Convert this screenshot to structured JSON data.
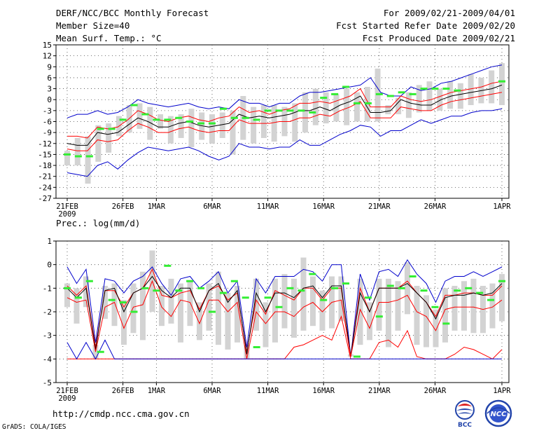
{
  "header": {
    "title": "DERF/NCC/BCC Monthly Forecast",
    "member_size": "Member Size=40",
    "variable": "Mean Surf. Temp.: °C",
    "period": "For 2009/02/21-2009/04/01",
    "fcst_started": "Fcst Started Refer Date 2009/02/20",
    "fcst_produced": "Fcst Produced Date 2009/02/21"
  },
  "footer": {
    "url": "http://cmdp.ncc.cma.gov.cn",
    "grads": "GrADS: COLA/IGES",
    "logo_bcc": "BCC",
    "logo_ncc": "NCC"
  },
  "colors": {
    "box": "#d3d3d3",
    "ensemble_mean": "#000000",
    "quartile": "#ff0000",
    "extreme": "#0000cc",
    "observed": "#33ee33",
    "grid": "#444444"
  },
  "chart_data": [
    {
      "type": "line",
      "title": "Mean Surf. Temp.: °C",
      "ylim": [
        -27,
        15
      ],
      "yticks": [
        -27,
        -24,
        -21,
        -18,
        -15,
        -12,
        -9,
        -6,
        -3,
        0,
        3,
        6,
        9,
        12,
        15
      ],
      "xlim": [
        1,
        40
      ],
      "xticks": [
        {
          "day": 1,
          "label": "21FEB",
          "sub": "2009"
        },
        {
          "day": 6,
          "label": "26FEB"
        },
        {
          "day": 9,
          "label": "1MAR"
        },
        {
          "day": 14,
          "label": "6MAR"
        },
        {
          "day": 19,
          "label": "11MAR"
        },
        {
          "day": 24,
          "label": "16MAR"
        },
        {
          "day": 29,
          "label": "21MAR"
        },
        {
          "day": 34,
          "label": "26MAR"
        },
        {
          "day": 40,
          "label": "1APR"
        }
      ],
      "series": [
        {
          "name": "max",
          "role": "extreme",
          "values": [
            -5,
            -4,
            -4,
            -3,
            -4,
            -3.5,
            -2,
            0,
            -1,
            -1.5,
            -2,
            -1.5,
            -1,
            -2,
            -2.5,
            -2,
            -2.5,
            0,
            -1,
            -1,
            -2,
            -1,
            -1,
            1,
            2,
            2,
            2.5,
            3,
            3.5,
            4,
            6,
            2,
            1,
            1,
            3.5,
            2.5,
            3,
            4.5,
            5,
            6,
            7,
            8,
            9,
            9.5
          ]
        },
        {
          "name": "q3",
          "role": "quartile",
          "values": [
            -10,
            -10,
            -10.5,
            -7.5,
            -8,
            -7.5,
            -5.5,
            -3,
            -4,
            -5.5,
            -6,
            -5,
            -4.5,
            -5.5,
            -6,
            -5,
            -4.5,
            -2,
            -3.5,
            -3,
            -4,
            -3,
            -2.5,
            -1,
            -1,
            -0.5,
            -1,
            0,
            1,
            3,
            -2,
            -2,
            -2,
            1,
            0,
            -0.5,
            0,
            1,
            2,
            2.5,
            3,
            3.5,
            4.5,
            5
          ]
        },
        {
          "name": "mean",
          "role": "mean",
          "values": [
            -12,
            -12.5,
            -12.5,
            -9,
            -9.5,
            -9,
            -7,
            -5,
            -6,
            -7.5,
            -7.5,
            -6.5,
            -6,
            -7,
            -7.5,
            -7,
            -6.5,
            -4,
            -5,
            -4.5,
            -5,
            -4.5,
            -4,
            -3,
            -3,
            -2,
            -3,
            -1.5,
            -0.5,
            1,
            -3.5,
            -3.5,
            -3,
            0,
            -1,
            -1.5,
            -1.5,
            0,
            1,
            1.5,
            2,
            2.5,
            3,
            4
          ]
        },
        {
          "name": "q1",
          "role": "quartile",
          "values": [
            -13.5,
            -14,
            -14,
            -11,
            -11.5,
            -11,
            -8.5,
            -6.5,
            -7.5,
            -9,
            -9,
            -8,
            -7.5,
            -8.5,
            -9,
            -8.5,
            -8.5,
            -5.5,
            -6.5,
            -6.5,
            -6.5,
            -6,
            -6,
            -5,
            -5,
            -4,
            -4.5,
            -3,
            -2,
            -0.5,
            -5,
            -5,
            -5,
            -2,
            -2.5,
            -3,
            -3,
            -1.5,
            -0.5,
            0,
            0.5,
            1,
            1.5,
            2
          ]
        },
        {
          "name": "min",
          "role": "extreme",
          "values": [
            -20,
            -20.5,
            -21,
            -18,
            -17,
            -19,
            -16.5,
            -14.5,
            -13,
            -13.5,
            -14,
            -13.5,
            -13,
            -14,
            -15.5,
            -16.5,
            -15.5,
            -12,
            -13,
            -13,
            -13.5,
            -13,
            -13,
            -11,
            -12.5,
            -12.5,
            -11,
            -9.5,
            -8.5,
            -7,
            -7.5,
            -10,
            -8.5,
            -8.5,
            -7,
            -5.5,
            -6.5,
            -5.5,
            -4.5,
            -4.5,
            -3.5,
            -3,
            -3,
            -2.5
          ]
        },
        {
          "name": "observed",
          "role": "observed",
          "values": [
            -15,
            -15.5,
            -15.5,
            -8,
            -8,
            -5.5,
            -1.5,
            -4,
            -5.5,
            -5.5,
            -5,
            -6,
            -6.5,
            -6.5,
            -2.5,
            -5,
            -5,
            -5.5,
            -3,
            -3,
            -3,
            -3,
            -3.5,
            0.5,
            1.5,
            3.5,
            -1,
            -1,
            1.5,
            1,
            2,
            1.5,
            3,
            3,
            3,
            2.5,
            5
          ]
        }
      ],
      "box_low": [
        -18,
        -18,
        -23,
        -17,
        -14.5,
        -10,
        -9,
        -8,
        -11,
        -8,
        -12,
        -10.5,
        -13,
        -11,
        -12,
        -10.5,
        -15,
        -11,
        -12,
        -10.5,
        -11.5,
        -10,
        -11.5,
        -9,
        -7,
        -6.5,
        -6,
        -7,
        -6,
        -6,
        -6,
        -4,
        -4,
        -5,
        -3.5,
        -3,
        -3,
        -2.5,
        -2.5,
        -1.5,
        -1,
        -1,
        -1.5
      ],
      "box_high": [
        -14,
        -10.5,
        -10,
        -7,
        -6.5,
        -4.5,
        -1.5,
        -1,
        -2,
        -4,
        -4.5,
        -4,
        -2.5,
        -3.5,
        -4,
        -3.5,
        -3,
        1,
        -2,
        -1.5,
        -1.5,
        -2,
        -1,
        2,
        3,
        2,
        1.5,
        3,
        2,
        3.5,
        8.5,
        -1.5,
        0.5,
        2,
        4,
        5,
        3,
        5,
        4.5,
        7,
        6,
        8,
        10,
        11
      ]
    },
    {
      "type": "line",
      "title": "Prec.: log(mm/d)",
      "ylim": [
        -5,
        1
      ],
      "yticks": [
        -5,
        -4,
        -3,
        -2,
        -1,
        0,
        1
      ],
      "xlim": [
        1,
        40
      ],
      "xticks": [
        {
          "day": 1,
          "label": "21FEB",
          "sub": "2009"
        },
        {
          "day": 6,
          "label": "26FEB"
        },
        {
          "day": 9,
          "label": "1MAR"
        },
        {
          "day": 14,
          "label": "6MAR"
        },
        {
          "day": 19,
          "label": "11MAR"
        },
        {
          "day": 24,
          "label": "16MAR"
        },
        {
          "day": 29,
          "label": "21MAR"
        },
        {
          "day": 34,
          "label": "26MAR"
        },
        {
          "day": 40,
          "label": "1APR"
        }
      ],
      "series": [
        {
          "name": "max",
          "role": "extreme",
          "values": [
            -0.1,
            -0.8,
            -0.2,
            -3.3,
            -0.6,
            -0.7,
            -1.2,
            -0.7,
            -0.5,
            -0.1,
            -0.8,
            -1.3,
            -0.6,
            -0.5,
            -1,
            -0.7,
            -0.3,
            -1.2,
            -0.7,
            -3.5,
            -0.6,
            -1.2,
            -0.5,
            -0.5,
            -0.5,
            -0.2,
            -0.3,
            -0.7,
            0,
            0,
            -3.9,
            -0.4,
            -1.5,
            -0.3,
            -0.2,
            -0.5,
            0.2,
            -0.4,
            -0.8,
            -1.6,
            -0.7,
            -0.5,
            -0.5,
            -0.3,
            -0.5,
            -0.3,
            -0.1
          ]
        },
        {
          "name": "q3",
          "role": "quartile",
          "values": [
            -0.9,
            -1.3,
            -0.9,
            -3.5,
            -1.1,
            -1.1,
            -1.8,
            -1.2,
            -1,
            -0.2,
            -1.3,
            -1.4,
            -1.2,
            -1.1,
            -1.9,
            -1.1,
            -0.9,
            -1.5,
            -1.2,
            -3.7,
            -1.5,
            -2.1,
            -1.1,
            -1.3,
            -1.5,
            -1,
            -1,
            -1.5,
            -1,
            -1,
            -3.9,
            -1,
            -2,
            -1,
            -1,
            -1,
            -0.7,
            -1.2,
            -1.6,
            -2.2,
            -1.3,
            -1.3,
            -1.2,
            -1.2,
            -1.3,
            -1.3,
            -0.9
          ]
        },
        {
          "name": "mean",
          "role": "mean",
          "values": [
            -1,
            -1.4,
            -1,
            -3.6,
            -1.1,
            -1,
            -2,
            -1.2,
            -1,
            -0.5,
            -1.1,
            -1.4,
            -1,
            -1,
            -2,
            -1.1,
            -0.8,
            -1.6,
            -1.1,
            -3.8,
            -1.2,
            -2,
            -1.2,
            -1.2,
            -1.4,
            -1,
            -0.9,
            -1.4,
            -0.9,
            -0.9,
            -3.9,
            -1.2,
            -2,
            -1,
            -1,
            -1,
            -0.8,
            -1.2,
            -1.6,
            -2.3,
            -1.4,
            -1.3,
            -1.3,
            -1.2,
            -1.3,
            -1.2,
            -0.8
          ]
        },
        {
          "name": "q1",
          "role": "quartile",
          "values": [
            -1.4,
            -1.6,
            -1.5,
            -3.7,
            -1.8,
            -1.6,
            -2.7,
            -1.8,
            -1.7,
            -0.7,
            -1.8,
            -2.2,
            -1.5,
            -1.6,
            -2.5,
            -1.5,
            -1.5,
            -2,
            -1.6,
            -4,
            -2,
            -2.5,
            -2,
            -2,
            -2.2,
            -1.8,
            -1.6,
            -2,
            -1.6,
            -1.5,
            -3.9,
            -1.9,
            -2.7,
            -1.6,
            -1.6,
            -1.5,
            -1.3,
            -2,
            -2.2,
            -2.8,
            -1.9,
            -1.8,
            -1.8,
            -1.8,
            -1.9,
            -1.8,
            -1.5
          ]
        },
        {
          "name": "q1b",
          "role": "quartile",
          "values": [
            -4,
            -4,
            -4,
            -4,
            -4,
            -4,
            -4,
            -4,
            -4,
            -4,
            -4,
            -4,
            -4,
            -4,
            -4,
            -4,
            -4,
            -4,
            -4,
            -4,
            -4,
            -4,
            -4,
            -4,
            -3.5,
            -3.4,
            -3.2,
            -3,
            -3.2,
            -2.2,
            -4,
            -4,
            -4,
            -3.3,
            -3.2,
            -3.5,
            -2.8,
            -3.9,
            -4,
            -4,
            -4,
            -3.8,
            -3.5,
            -3.6,
            -3.8,
            -4,
            -3.6
          ]
        },
        {
          "name": "min",
          "role": "extreme",
          "values": [
            -3.3,
            -4,
            -3.3,
            -4,
            -3.2,
            -4,
            -4,
            -4,
            -4,
            -4,
            -4,
            -4,
            -4,
            -4,
            -4,
            -4,
            -4,
            -4,
            -4,
            -4,
            -4,
            -4,
            -4,
            -4,
            -4,
            -4,
            -4,
            -4,
            -4,
            -4,
            -4,
            -4,
            -4,
            -4,
            -4,
            -4,
            -4,
            -4,
            -4,
            -4,
            -4,
            -4,
            -4,
            -4,
            -4,
            -4,
            -4
          ]
        },
        {
          "name": "observed",
          "role": "observed",
          "values": [
            -1,
            -1.4,
            -0.7,
            -3.7,
            -1.5,
            -1.6,
            -2,
            -1,
            -1.1,
            -0.05,
            -1.1,
            -0.7,
            -1,
            -2,
            -1.2,
            -0.7,
            -1.4,
            -3.5,
            -1.4,
            -1.8,
            -1,
            -1.1,
            -0.4,
            -1.5,
            -1,
            -0.8,
            -3.9,
            -1.4,
            -2.2,
            -0.9,
            -1,
            -0.5,
            -1.1,
            -1.8,
            -2.5,
            -1.1,
            -1,
            -1.2,
            -1.5,
            -0.7
          ]
        }
      ],
      "box_low": [
        -1.8,
        -2.5,
        -1.8,
        -4,
        -2.3,
        -2.6,
        -3.4,
        -2.9,
        -3.2,
        -2,
        -2.6,
        -2.5,
        -3.3,
        -2.6,
        -3.2,
        -2.8,
        -3.4,
        -3.6,
        -3.3,
        -4,
        -2.8,
        -3.5,
        -3.3,
        -2.7,
        -3.1,
        -2.8,
        -2.6,
        -2.8,
        -2.7,
        -2.4,
        -3.9,
        -3.4,
        -3.2,
        -2.8,
        -3.5,
        -2.8,
        -2.1,
        -3.4,
        -3.5,
        -3.5,
        -3.3,
        -2.8,
        -2.8,
        -2.9,
        -2.9,
        -2.7,
        -2.4
      ],
      "box_high": [
        -0.8,
        -1,
        -0.5,
        -3.4,
        -0.9,
        -0.8,
        -1.5,
        -0.8,
        -0.3,
        0.6,
        -0.9,
        -0.6,
        -0.8,
        -0.7,
        -1.6,
        -0.8,
        -0.3,
        -1.2,
        -0.9,
        -3.4,
        -0.6,
        -1.6,
        -0.6,
        -0.4,
        -0.6,
        0.3,
        -0.5,
        -1.1,
        -0.5,
        -0.5,
        -3.8,
        -0.6,
        -1.6,
        -0.6,
        -0.6,
        -0.7,
        0.1,
        -0.9,
        -1.3,
        -1.9,
        -1,
        -0.9,
        -0.7,
        -0.6,
        -0.9,
        -0.8,
        -0.4
      ]
    }
  ],
  "obs_days": {
    "temp": [
      1,
      2,
      3,
      4,
      5,
      6,
      7,
      8,
      9,
      10,
      11,
      12,
      13,
      14,
      15,
      16,
      17,
      18,
      19,
      20,
      21,
      22,
      23,
      24,
      25,
      26,
      27,
      28,
      29,
      30,
      31,
      32,
      33,
      34,
      35,
      36,
      40
    ],
    "prec": [
      1,
      2,
      3,
      4,
      5,
      6,
      7,
      8,
      9,
      10,
      11,
      12,
      13,
      14,
      15,
      16,
      17,
      18,
      19,
      20,
      21,
      22,
      23,
      24,
      25,
      26,
      27,
      28,
      29,
      30,
      31,
      32,
      33,
      34,
      35,
      36,
      37,
      38,
      39,
      40
    ]
  }
}
